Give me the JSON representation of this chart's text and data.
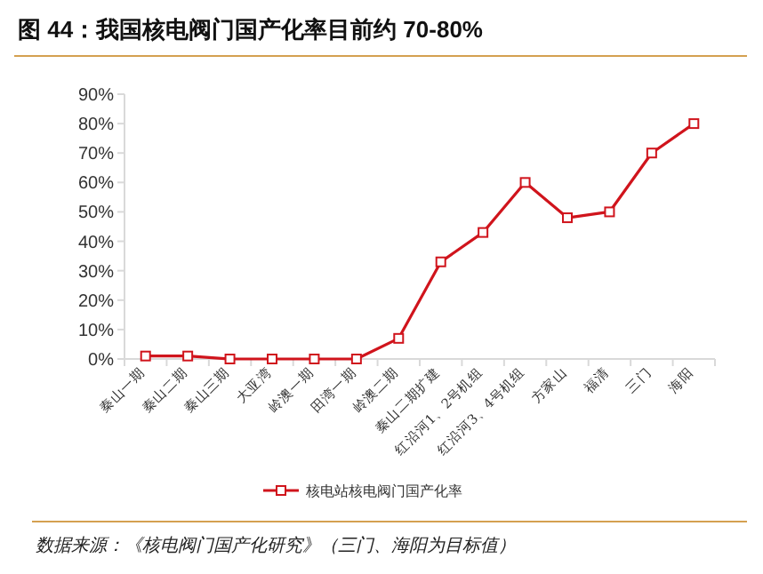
{
  "chart_data": {
    "type": "line",
    "title": "图 44：我国核电阀门国产化率目前约 70-80%",
    "categories": [
      "秦山一期",
      "秦山二期",
      "秦山三期",
      "大亚湾",
      "岭澳一期",
      "田湾一期",
      "岭澳二期",
      "秦山二期扩建",
      "红沿河1、2号机组",
      "红沿河3、4号机组",
      "方家山",
      "福清",
      "三门",
      "海阳"
    ],
    "series": [
      {
        "name": "核电站核电阀门国产化率",
        "color": "#d0141c",
        "values": [
          1,
          1,
          0,
          0,
          0,
          0,
          7,
          33,
          43,
          60,
          48,
          50,
          70,
          80
        ]
      }
    ],
    "ylim": [
      0,
      90
    ],
    "yticks": [
      {
        "value": 0,
        "label": "0%"
      },
      {
        "value": 10,
        "label": "10%"
      },
      {
        "value": 20,
        "label": "20%"
      },
      {
        "value": 30,
        "label": "30%"
      },
      {
        "value": 40,
        "label": "40%"
      },
      {
        "value": 50,
        "label": "50%"
      },
      {
        "value": 60,
        "label": "60%"
      },
      {
        "value": 70,
        "label": "70%"
      },
      {
        "value": 80,
        "label": "80%"
      },
      {
        "value": 90,
        "label": "90%"
      }
    ],
    "marker": "square",
    "legend": "bottom",
    "grid": false,
    "annotations": [
      "数据来源：《核电阀门国产化研究》（三门、海阳为目标值）"
    ]
  }
}
